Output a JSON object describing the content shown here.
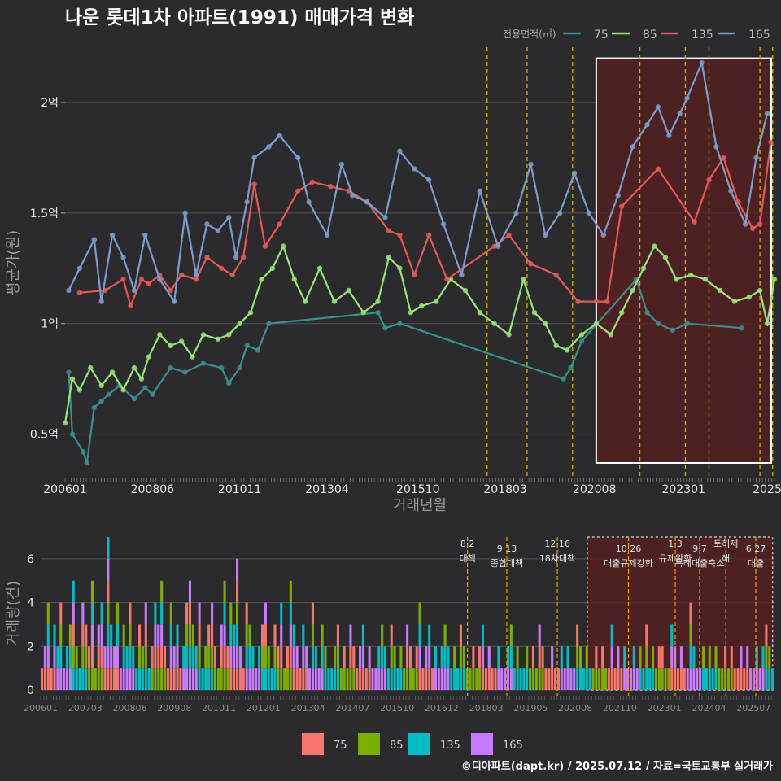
{
  "title": "나운 롯데1차 아파트(1991) 매매가격 변화",
  "caption": "©디아파트(dapt.kr) / 2025.07.12 / 자료=국토교통부 실거래가",
  "colors": {
    "background": "#2b2b2d",
    "grid": "#555555",
    "s75": "#3a8f8c",
    "s85": "#9be27c",
    "s135": "#e05a5a",
    "s165": "#7f9cc8",
    "vol75": "#f8766d",
    "vol85": "#7cae00",
    "vol135": "#00bfc4",
    "vol165": "#c77cff",
    "policy_line": "#c8b400",
    "highlight_box": "#ffffff",
    "highlight_fill": "#5a1f1f"
  },
  "legend": {
    "title": "전용면적(㎡)",
    "items": [
      "75",
      "85",
      "135",
      "165"
    ]
  },
  "chart_data": [
    {
      "type": "line",
      "title": "나운 롯데1차 아파트(1991) 매매가격 변화",
      "xlabel": "거래년월",
      "ylabel": "평균가(원)",
      "x_ticks": [
        "200601",
        "200806",
        "201011",
        "201304",
        "201510",
        "201803",
        "202008",
        "202301",
        "2025"
      ],
      "y_ticks": [
        "0.5억",
        "1억",
        "1.5억",
        "2억"
      ],
      "y_tick_values": [
        0.5,
        1.0,
        1.5,
        2.0
      ],
      "ylim": [
        0.3,
        2.25
      ],
      "x_range": [
        2006.0,
        2025.5
      ],
      "highlight_range": [
        2020.6,
        2025.5
      ],
      "policy_lines": [
        2017.6,
        2018.7,
        2019.95,
        2021.8,
        2023.05,
        2023.7,
        2025.1,
        2025.45
      ],
      "grid": true,
      "legend_position": "top-right",
      "series": [
        {
          "name": "75",
          "points": [
            [
              2006.1,
              0.78
            ],
            [
              2006.2,
              0.5
            ],
            [
              2006.5,
              0.42
            ],
            [
              2006.6,
              0.37
            ],
            [
              2006.8,
              0.62
            ],
            [
              2007.0,
              0.65
            ],
            [
              2007.2,
              0.68
            ],
            [
              2007.5,
              0.72
            ],
            [
              2007.9,
              0.66
            ],
            [
              2008.2,
              0.71
            ],
            [
              2008.4,
              0.68
            ],
            [
              2008.9,
              0.8
            ],
            [
              2009.3,
              0.78
            ],
            [
              2009.8,
              0.82
            ],
            [
              2010.3,
              0.8
            ],
            [
              2010.5,
              0.73
            ],
            [
              2010.8,
              0.8
            ],
            [
              2011.0,
              0.9
            ],
            [
              2011.3,
              0.88
            ],
            [
              2011.6,
              1.0
            ],
            [
              2014.6,
              1.05
            ],
            [
              2014.8,
              0.98
            ],
            [
              2015.2,
              1.0
            ],
            [
              2019.7,
              0.75
            ],
            [
              2019.9,
              0.8
            ],
            [
              2020.2,
              0.92
            ],
            [
              2021.7,
              1.2
            ],
            [
              2022.0,
              1.05
            ],
            [
              2022.3,
              1.0
            ],
            [
              2022.7,
              0.97
            ],
            [
              2023.1,
              1.0
            ],
            [
              2024.6,
              0.98
            ]
          ]
        },
        {
          "name": "85",
          "points": [
            [
              2006.0,
              0.55
            ],
            [
              2006.2,
              0.75
            ],
            [
              2006.4,
              0.7
            ],
            [
              2006.7,
              0.8
            ],
            [
              2007.0,
              0.72
            ],
            [
              2007.3,
              0.78
            ],
            [
              2007.6,
              0.7
            ],
            [
              2007.9,
              0.8
            ],
            [
              2008.1,
              0.75
            ],
            [
              2008.3,
              0.85
            ],
            [
              2008.6,
              0.95
            ],
            [
              2008.9,
              0.9
            ],
            [
              2009.2,
              0.92
            ],
            [
              2009.5,
              0.85
            ],
            [
              2009.8,
              0.95
            ],
            [
              2010.2,
              0.93
            ],
            [
              2010.5,
              0.95
            ],
            [
              2010.8,
              1.0
            ],
            [
              2011.1,
              1.05
            ],
            [
              2011.4,
              1.2
            ],
            [
              2011.7,
              1.25
            ],
            [
              2012.0,
              1.35
            ],
            [
              2012.3,
              1.2
            ],
            [
              2012.6,
              1.1
            ],
            [
              2013.0,
              1.25
            ],
            [
              2013.4,
              1.1
            ],
            [
              2013.8,
              1.15
            ],
            [
              2014.2,
              1.05
            ],
            [
              2014.6,
              1.1
            ],
            [
              2014.9,
              1.3
            ],
            [
              2015.2,
              1.25
            ],
            [
              2015.5,
              1.05
            ],
            [
              2015.8,
              1.08
            ],
            [
              2016.2,
              1.1
            ],
            [
              2016.6,
              1.2
            ],
            [
              2017.0,
              1.15
            ],
            [
              2017.4,
              1.05
            ],
            [
              2017.8,
              1.0
            ],
            [
              2018.2,
              0.95
            ],
            [
              2018.6,
              1.2
            ],
            [
              2018.9,
              1.05
            ],
            [
              2019.2,
              1.0
            ],
            [
              2019.5,
              0.9
            ],
            [
              2019.8,
              0.88
            ],
            [
              2020.2,
              0.95
            ],
            [
              2020.6,
              1.0
            ],
            [
              2021.0,
              0.95
            ],
            [
              2021.3,
              1.05
            ],
            [
              2021.6,
              1.15
            ],
            [
              2021.9,
              1.25
            ],
            [
              2022.2,
              1.35
            ],
            [
              2022.5,
              1.3
            ],
            [
              2022.8,
              1.2
            ],
            [
              2023.2,
              1.22
            ],
            [
              2023.6,
              1.2
            ],
            [
              2024.0,
              1.15
            ],
            [
              2024.4,
              1.1
            ],
            [
              2024.8,
              1.12
            ],
            [
              2025.1,
              1.15
            ],
            [
              2025.3,
              1.0
            ],
            [
              2025.5,
              1.2
            ]
          ]
        },
        {
          "name": "135",
          "points": [
            [
              2006.4,
              1.14
            ],
            [
              2007.1,
              1.15
            ],
            [
              2007.6,
              1.2
            ],
            [
              2007.8,
              1.08
            ],
            [
              2008.1,
              1.2
            ],
            [
              2008.3,
              1.18
            ],
            [
              2008.6,
              1.22
            ],
            [
              2008.9,
              1.15
            ],
            [
              2009.2,
              1.22
            ],
            [
              2009.6,
              1.2
            ],
            [
              2009.9,
              1.3
            ],
            [
              2010.3,
              1.25
            ],
            [
              2010.6,
              1.22
            ],
            [
              2010.9,
              1.3
            ],
            [
              2011.2,
              1.63
            ],
            [
              2011.5,
              1.35
            ],
            [
              2011.9,
              1.45
            ],
            [
              2012.4,
              1.6
            ],
            [
              2012.8,
              1.64
            ],
            [
              2013.3,
              1.62
            ],
            [
              2013.8,
              1.6
            ],
            [
              2014.3,
              1.55
            ],
            [
              2014.9,
              1.42
            ],
            [
              2015.2,
              1.4
            ],
            [
              2015.6,
              1.22
            ],
            [
              2016.0,
              1.4
            ],
            [
              2016.5,
              1.2
            ],
            [
              2017.8,
              1.35
            ],
            [
              2018.2,
              1.4
            ],
            [
              2018.8,
              1.27
            ],
            [
              2019.5,
              1.22
            ],
            [
              2020.1,
              1.1
            ],
            [
              2020.6,
              1.1
            ],
            [
              2020.9,
              1.1
            ],
            [
              2021.3,
              1.53
            ],
            [
              2022.3,
              1.7
            ],
            [
              2023.3,
              1.46
            ],
            [
              2023.7,
              1.65
            ],
            [
              2024.1,
              1.75
            ],
            [
              2024.5,
              1.55
            ],
            [
              2024.9,
              1.43
            ],
            [
              2025.1,
              1.45
            ],
            [
              2025.4,
              1.82
            ]
          ]
        },
        {
          "name": "165",
          "points": [
            [
              2006.1,
              1.15
            ],
            [
              2006.4,
              1.25
            ],
            [
              2006.8,
              1.38
            ],
            [
              2007.0,
              1.1
            ],
            [
              2007.3,
              1.4
            ],
            [
              2007.6,
              1.3
            ],
            [
              2007.9,
              1.15
            ],
            [
              2008.2,
              1.4
            ],
            [
              2008.6,
              1.2
            ],
            [
              2009.0,
              1.1
            ],
            [
              2009.3,
              1.5
            ],
            [
              2009.6,
              1.22
            ],
            [
              2009.9,
              1.45
            ],
            [
              2010.2,
              1.42
            ],
            [
              2010.5,
              1.48
            ],
            [
              2010.7,
              1.3
            ],
            [
              2011.0,
              1.55
            ],
            [
              2011.2,
              1.75
            ],
            [
              2011.6,
              1.8
            ],
            [
              2011.9,
              1.85
            ],
            [
              2012.4,
              1.75
            ],
            [
              2012.7,
              1.55
            ],
            [
              2013.2,
              1.4
            ],
            [
              2013.6,
              1.72
            ],
            [
              2013.9,
              1.58
            ],
            [
              2014.3,
              1.55
            ],
            [
              2014.8,
              1.48
            ],
            [
              2015.2,
              1.78
            ],
            [
              2015.6,
              1.7
            ],
            [
              2016.0,
              1.65
            ],
            [
              2016.4,
              1.45
            ],
            [
              2016.9,
              1.22
            ],
            [
              2017.4,
              1.6
            ],
            [
              2017.9,
              1.35
            ],
            [
              2018.4,
              1.5
            ],
            [
              2018.8,
              1.72
            ],
            [
              2019.2,
              1.4
            ],
            [
              2019.6,
              1.5
            ],
            [
              2020.0,
              1.68
            ],
            [
              2020.4,
              1.5
            ],
            [
              2020.8,
              1.4
            ],
            [
              2021.2,
              1.58
            ],
            [
              2021.6,
              1.8
            ],
            [
              2022.0,
              1.9
            ],
            [
              2022.3,
              1.98
            ],
            [
              2022.6,
              1.85
            ],
            [
              2022.9,
              1.95
            ],
            [
              2023.1,
              2.02
            ],
            [
              2023.5,
              2.18
            ],
            [
              2023.9,
              1.8
            ],
            [
              2024.3,
              1.6
            ],
            [
              2024.7,
              1.45
            ],
            [
              2025.0,
              1.75
            ],
            [
              2025.3,
              1.95
            ]
          ]
        }
      ]
    },
    {
      "type": "bar",
      "ylabel": "거래량(건)",
      "stacked": true,
      "x_ticks": [
        "200601",
        "200703",
        "200806",
        "200908",
        "201011",
        "201201",
        "201304",
        "201407",
        "201510",
        "201612",
        "201803",
        "201905",
        "202008",
        "202110",
        "202301",
        "202404",
        "202507"
      ],
      "y_ticks": [
        "0",
        "2",
        "4",
        "6"
      ],
      "y_tick_values": [
        0,
        2,
        4,
        6
      ],
      "ylim": [
        0,
        7
      ],
      "series_names": [
        "75",
        "85",
        "135",
        "165"
      ],
      "policy_annotations": [
        {
          "x": 2017.4,
          "label": "8·2 대책"
        },
        {
          "x": 2018.45,
          "label": "9·13 종합대책"
        },
        {
          "x": 2019.8,
          "label": "12·16 18차대책"
        },
        {
          "x": 2021.7,
          "label": "10·26 대출규제강화"
        },
        {
          "x": 2022.95,
          "label": "1·3 규제완화"
        },
        {
          "x": 2023.6,
          "label": "9·7 특례대출축소"
        },
        {
          "x": 2024.3,
          "label": "토허제 해"
        },
        {
          "x": 2025.1,
          "label": "6·27 대출"
        }
      ],
      "monthly_totals": [
        1,
        2,
        4,
        1,
        3,
        2,
        4,
        1,
        2,
        3,
        5,
        2,
        1,
        4,
        3,
        2,
        5,
        1,
        3,
        4,
        2,
        7,
        3,
        2,
        4,
        1,
        3,
        2,
        4,
        2,
        1,
        3,
        2,
        4,
        1,
        2,
        4,
        3,
        5,
        2,
        1,
        4,
        2,
        3,
        1,
        2,
        4,
        5,
        3,
        2,
        4,
        1,
        2,
        3,
        4,
        2,
        1,
        3,
        5,
        2,
        4,
        3,
        6,
        2,
        1,
        4,
        3,
        2,
        1,
        2,
        3,
        4,
        2,
        1,
        3,
        2,
        4,
        1,
        2,
        5,
        3,
        2,
        1,
        3,
        2,
        1,
        4,
        2,
        1,
        3,
        2,
        1,
        1,
        2,
        3,
        1,
        2,
        1,
        3,
        2,
        1,
        2,
        3,
        1,
        2,
        1,
        1,
        2,
        3,
        2,
        1,
        3,
        2,
        1,
        2,
        1,
        3,
        2,
        1,
        2,
        4,
        1,
        2,
        3,
        1,
        2,
        1,
        2,
        3,
        2,
        1,
        2,
        1,
        3,
        2,
        1,
        1,
        2,
        1,
        2,
        3,
        1,
        2,
        1,
        1,
        2,
        1,
        1,
        2,
        3,
        1,
        2,
        1,
        1,
        2,
        1,
        2,
        1,
        3,
        2,
        1,
        1,
        2,
        1,
        1,
        2,
        1,
        2,
        1,
        1,
        3,
        2,
        1,
        2,
        1,
        1,
        2,
        1,
        2,
        1,
        1,
        3,
        1,
        2,
        1,
        2,
        1,
        1,
        2,
        1,
        2,
        1,
        3,
        1,
        2,
        1,
        2,
        2,
        1,
        1,
        3,
        2,
        1,
        2,
        1,
        1,
        4,
        2,
        1,
        1,
        2,
        1,
        2,
        1,
        2,
        1,
        1,
        2,
        1,
        2,
        1,
        1,
        2,
        1,
        2,
        1,
        1,
        2,
        1,
        2,
        3,
        2,
        1
      ]
    }
  ]
}
